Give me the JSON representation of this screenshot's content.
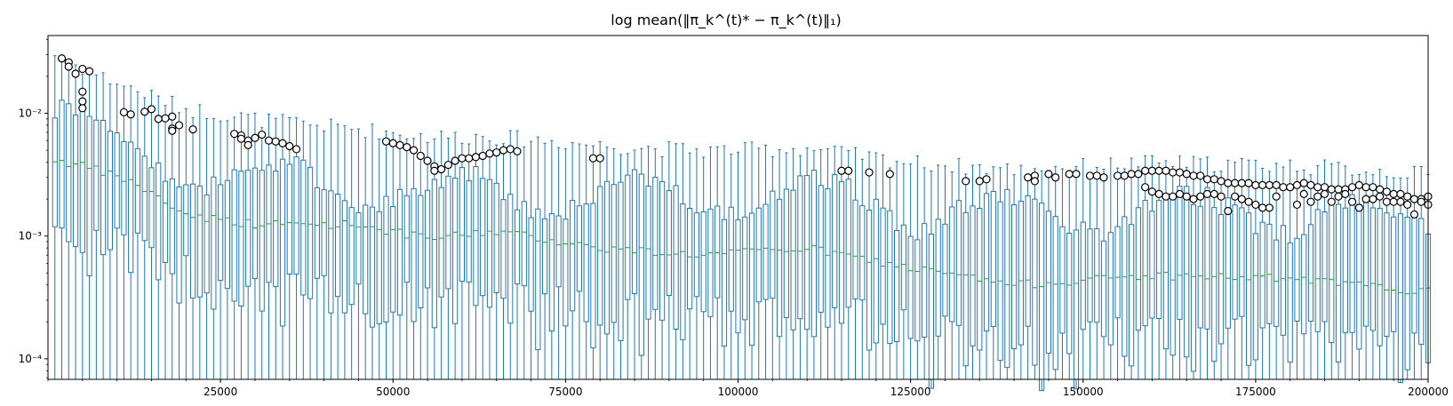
{
  "chart_data": {
    "type": "boxplot",
    "title": "log mean(‖π_k^(t)* − π_k^(t)‖₁)",
    "xlabel": "",
    "ylabel": "",
    "yscale": "log",
    "xlim": [
      0,
      200000
    ],
    "ylim": [
      6.8e-05,
      0.043
    ],
    "box_spacing": 1000,
    "x_ticks": [
      25000,
      50000,
      75000,
      100000,
      125000,
      150000,
      175000,
      200000
    ],
    "x_tick_labels": [
      "25000",
      "50000",
      "75000",
      "100000",
      "125000",
      "150000",
      "175000",
      "200000"
    ],
    "y_ticks": [
      0.0001,
      0.001,
      0.01
    ],
    "y_tick_labels": [
      "10⁻⁴",
      "10⁻³",
      "10⁻²"
    ],
    "grid": false,
    "colors": {
      "box": "#1f77b4",
      "median": "#2ca02c",
      "flier_edge": "#000000",
      "flier_fill": "#ffffff"
    },
    "trend_anchors": {
      "x": [
        1000,
        6000,
        12000,
        20000,
        30000,
        45000,
        55000,
        65000,
        80000,
        95000,
        110000,
        125000,
        140000,
        160000,
        180000,
        200000
      ],
      "median": [
        0.0042,
        0.0036,
        0.0028,
        0.0015,
        0.00125,
        0.00125,
        0.00095,
        0.0011,
        0.0008,
        0.0007,
        0.0008,
        0.00055,
        0.0004,
        0.00048,
        0.00045,
        0.00035
      ],
      "q1": [
        0.0012,
        0.001,
        0.0008,
        0.00048,
        0.0004,
        0.0003,
        0.0003,
        0.00032,
        0.00025,
        0.00022,
        0.00025,
        0.00018,
        0.00013,
        0.00016,
        0.00015,
        0.00012
      ],
      "q3": [
        0.01,
        0.008,
        0.0055,
        0.0035,
        0.003,
        0.0028,
        0.0022,
        0.0025,
        0.0022,
        0.0022,
        0.0023,
        0.0018,
        0.0015,
        0.0017,
        0.0016,
        0.0014
      ],
      "whisker_high": [
        0.03,
        0.022,
        0.016,
        0.011,
        0.009,
        0.0075,
        0.0065,
        0.0065,
        0.0055,
        0.005,
        0.0052,
        0.004,
        0.0035,
        0.004,
        0.0038,
        0.0032
      ]
    },
    "outliers": [
      {
        "x": 2000,
        "y": 0.028
      },
      {
        "x": 3000,
        "y": 0.026
      },
      {
        "x": 3000,
        "y": 0.024
      },
      {
        "x": 4000,
        "y": 0.021
      },
      {
        "x": 5000,
        "y": 0.023
      },
      {
        "x": 6000,
        "y": 0.022
      },
      {
        "x": 5000,
        "y": 0.015
      },
      {
        "x": 5000,
        "y": 0.0125
      },
      {
        "x": 5000,
        "y": 0.011
      },
      {
        "x": 11000,
        "y": 0.0102
      },
      {
        "x": 12000,
        "y": 0.0098
      },
      {
        "x": 14000,
        "y": 0.0103
      },
      {
        "x": 15000,
        "y": 0.0108
      },
      {
        "x": 16000,
        "y": 0.009
      },
      {
        "x": 17000,
        "y": 0.0091
      },
      {
        "x": 18000,
        "y": 0.0094
      },
      {
        "x": 18000,
        "y": 0.0075
      },
      {
        "x": 18000,
        "y": 0.0072
      },
      {
        "x": 19000,
        "y": 0.008
      },
      {
        "x": 21000,
        "y": 0.0074
      },
      {
        "x": 27000,
        "y": 0.0068
      },
      {
        "x": 28000,
        "y": 0.0066
      },
      {
        "x": 28000,
        "y": 0.0062
      },
      {
        "x": 29000,
        "y": 0.006
      },
      {
        "x": 29000,
        "y": 0.0055
      },
      {
        "x": 30000,
        "y": 0.0063
      },
      {
        "x": 31000,
        "y": 0.0067
      },
      {
        "x": 32000,
        "y": 0.006
      },
      {
        "x": 33000,
        "y": 0.0059
      },
      {
        "x": 34000,
        "y": 0.0057
      },
      {
        "x": 35000,
        "y": 0.0054
      },
      {
        "x": 36000,
        "y": 0.0051
      },
      {
        "x": 49000,
        "y": 0.0059
      },
      {
        "x": 50000,
        "y": 0.0057
      },
      {
        "x": 51000,
        "y": 0.0055
      },
      {
        "x": 52000,
        "y": 0.0053
      },
      {
        "x": 53000,
        "y": 0.005
      },
      {
        "x": 54000,
        "y": 0.0045
      },
      {
        "x": 55000,
        "y": 0.0041
      },
      {
        "x": 56000,
        "y": 0.0037
      },
      {
        "x": 56000,
        "y": 0.0034
      },
      {
        "x": 57000,
        "y": 0.0035
      },
      {
        "x": 58000,
        "y": 0.0038
      },
      {
        "x": 59000,
        "y": 0.0041
      },
      {
        "x": 60000,
        "y": 0.0043
      },
      {
        "x": 61000,
        "y": 0.0043
      },
      {
        "x": 62000,
        "y": 0.0044
      },
      {
        "x": 63000,
        "y": 0.0045
      },
      {
        "x": 64000,
        "y": 0.0047
      },
      {
        "x": 65000,
        "y": 0.0048
      },
      {
        "x": 66000,
        "y": 0.005
      },
      {
        "x": 67000,
        "y": 0.0051
      },
      {
        "x": 68000,
        "y": 0.0049
      },
      {
        "x": 79000,
        "y": 0.0043
      },
      {
        "x": 80000,
        "y": 0.0043
      },
      {
        "x": 115000,
        "y": 0.0034
      },
      {
        "x": 116000,
        "y": 0.0034
      },
      {
        "x": 119000,
        "y": 0.0033
      },
      {
        "x": 122000,
        "y": 0.0032
      },
      {
        "x": 133000,
        "y": 0.0028
      },
      {
        "x": 135000,
        "y": 0.0028
      },
      {
        "x": 136000,
        "y": 0.0029
      },
      {
        "x": 142000,
        "y": 0.003
      },
      {
        "x": 143000,
        "y": 0.0031
      },
      {
        "x": 143000,
        "y": 0.0028
      },
      {
        "x": 145000,
        "y": 0.0032
      },
      {
        "x": 146000,
        "y": 0.003
      },
      {
        "x": 148000,
        "y": 0.0032
      },
      {
        "x": 149000,
        "y": 0.0032
      },
      {
        "x": 151000,
        "y": 0.0031
      },
      {
        "x": 152000,
        "y": 0.0031
      },
      {
        "x": 153000,
        "y": 0.003
      },
      {
        "x": 155000,
        "y": 0.0031
      },
      {
        "x": 156000,
        "y": 0.0031
      },
      {
        "x": 157000,
        "y": 0.0032
      },
      {
        "x": 158000,
        "y": 0.0032
      },
      {
        "x": 159000,
        "y": 0.0034
      },
      {
        "x": 160000,
        "y": 0.0034
      },
      {
        "x": 161000,
        "y": 0.0034
      },
      {
        "x": 162000,
        "y": 0.0034
      },
      {
        "x": 163000,
        "y": 0.0033
      },
      {
        "x": 164000,
        "y": 0.0033
      },
      {
        "x": 165000,
        "y": 0.0032
      },
      {
        "x": 166000,
        "y": 0.0031
      },
      {
        "x": 167000,
        "y": 0.0031
      },
      {
        "x": 168000,
        "y": 0.0029
      },
      {
        "x": 169000,
        "y": 0.0029
      },
      {
        "x": 170000,
        "y": 0.0028
      },
      {
        "x": 171000,
        "y": 0.0027
      },
      {
        "x": 172000,
        "y": 0.0027
      },
      {
        "x": 173000,
        "y": 0.0027
      },
      {
        "x": 174000,
        "y": 0.0027
      },
      {
        "x": 175000,
        "y": 0.0026
      },
      {
        "x": 176000,
        "y": 0.0026
      },
      {
        "x": 177000,
        "y": 0.0026
      },
      {
        "x": 178000,
        "y": 0.0026
      },
      {
        "x": 179000,
        "y": 0.0025
      },
      {
        "x": 180000,
        "y": 0.0025
      },
      {
        "x": 181000,
        "y": 0.0026
      },
      {
        "x": 182000,
        "y": 0.0027
      },
      {
        "x": 183000,
        "y": 0.0026
      },
      {
        "x": 184000,
        "y": 0.0025
      },
      {
        "x": 185000,
        "y": 0.0025
      },
      {
        "x": 186000,
        "y": 0.0024
      },
      {
        "x": 187000,
        "y": 0.0024
      },
      {
        "x": 188000,
        "y": 0.0024
      },
      {
        "x": 189000,
        "y": 0.0025
      },
      {
        "x": 190000,
        "y": 0.0026
      },
      {
        "x": 191000,
        "y": 0.0025
      },
      {
        "x": 192000,
        "y": 0.0025
      },
      {
        "x": 193000,
        "y": 0.0024
      },
      {
        "x": 194000,
        "y": 0.0023
      },
      {
        "x": 195000,
        "y": 0.0022
      },
      {
        "x": 196000,
        "y": 0.0022
      },
      {
        "x": 197000,
        "y": 0.0021
      },
      {
        "x": 198000,
        "y": 0.002
      },
      {
        "x": 199000,
        "y": 0.002
      },
      {
        "x": 200000,
        "y": 0.0021
      },
      {
        "x": 159000,
        "y": 0.0025
      },
      {
        "x": 160000,
        "y": 0.0023
      },
      {
        "x": 161000,
        "y": 0.0022
      },
      {
        "x": 162000,
        "y": 0.0021
      },
      {
        "x": 163000,
        "y": 0.0021
      },
      {
        "x": 164000,
        "y": 0.0022
      },
      {
        "x": 165000,
        "y": 0.0021
      },
      {
        "x": 166000,
        "y": 0.002
      },
      {
        "x": 167000,
        "y": 0.0021
      },
      {
        "x": 168000,
        "y": 0.0022
      },
      {
        "x": 169000,
        "y": 0.0022
      },
      {
        "x": 170000,
        "y": 0.0021
      },
      {
        "x": 171000,
        "y": 0.0016
      },
      {
        "x": 172000,
        "y": 0.0021
      },
      {
        "x": 173000,
        "y": 0.002
      },
      {
        "x": 174000,
        "y": 0.0019
      },
      {
        "x": 175000,
        "y": 0.0018
      },
      {
        "x": 176000,
        "y": 0.0017
      },
      {
        "x": 177000,
        "y": 0.0017
      },
      {
        "x": 178000,
        "y": 0.0021
      },
      {
        "x": 181000,
        "y": 0.0018
      },
      {
        "x": 182000,
        "y": 0.0022
      },
      {
        "x": 183000,
        "y": 0.0019
      },
      {
        "x": 184000,
        "y": 0.0021
      },
      {
        "x": 185000,
        "y": 0.0022
      },
      {
        "x": 186000,
        "y": 0.0019
      },
      {
        "x": 187000,
        "y": 0.0021
      },
      {
        "x": 188000,
        "y": 0.0022
      },
      {
        "x": 189000,
        "y": 0.0019
      },
      {
        "x": 190000,
        "y": 0.0017
      },
      {
        "x": 191000,
        "y": 0.002
      },
      {
        "x": 192000,
        "y": 0.002
      },
      {
        "x": 193000,
        "y": 0.0021
      },
      {
        "x": 194000,
        "y": 0.0019
      },
      {
        "x": 195000,
        "y": 0.0019
      },
      {
        "x": 196000,
        "y": 0.0019
      },
      {
        "x": 197000,
        "y": 0.0018
      },
      {
        "x": 198000,
        "y": 0.0015
      },
      {
        "x": 199000,
        "y": 0.0019
      },
      {
        "x": 200000,
        "y": 0.0018
      }
    ]
  }
}
